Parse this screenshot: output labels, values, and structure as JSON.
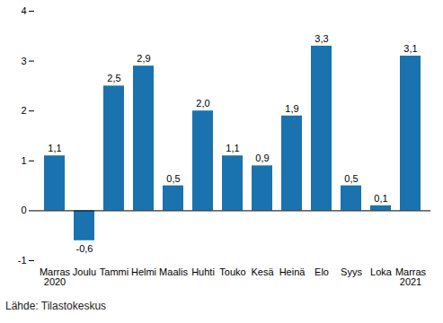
{
  "chart_data": {
    "type": "bar",
    "categories": [
      "Marras\n2020",
      "Joulu",
      "Tammi",
      "Helmi",
      "Maalis",
      "Huhti",
      "Touko",
      "Kesä",
      "Heinä",
      "Elo",
      "Syys",
      "Loka",
      "Marras\n2021"
    ],
    "values": [
      1.1,
      -0.6,
      2.5,
      2.9,
      0.5,
      2.0,
      1.1,
      0.9,
      1.9,
      3.3,
      0.5,
      0.1,
      3.1
    ],
    "value_labels": [
      "1,1",
      "-0,6",
      "2,5",
      "2,9",
      "0,5",
      "2,0",
      "1,1",
      "0,9",
      "1,9",
      "3,3",
      "0,5",
      "0,1",
      "3,1"
    ],
    "data_labels": true,
    "color": "#1a72ae",
    "ylim": [
      -1,
      4
    ],
    "yticks": [
      -1,
      0,
      1,
      2,
      3,
      4
    ],
    "grid": false,
    "caption": "Lähde: Tilastokeskus"
  }
}
